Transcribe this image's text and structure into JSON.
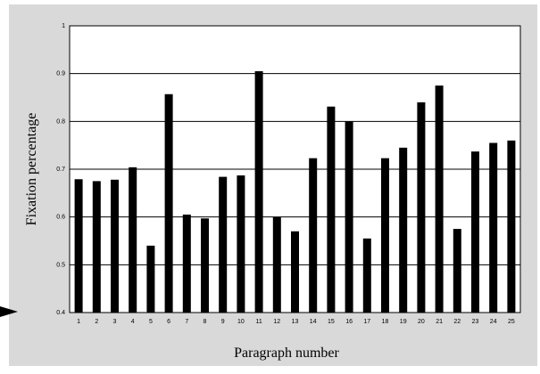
{
  "chart_data": {
    "type": "bar",
    "title": "",
    "xlabel": "Paragraph number",
    "ylabel": "Fixation percentage",
    "ylim": [
      0.4,
      1.0
    ],
    "yticks": [
      "0.4",
      "0.5",
      "0.6",
      "0.7",
      "0.8",
      "0.9",
      "1"
    ],
    "grid": true,
    "legend": "none",
    "categories": [
      "1",
      "2",
      "3",
      "4",
      "5",
      "6",
      "7",
      "8",
      "9",
      "10",
      "11",
      "12",
      "13",
      "14",
      "15",
      "16",
      "17",
      "18",
      "19",
      "20",
      "21",
      "22",
      "23",
      "24",
      "25"
    ],
    "values": [
      0.679,
      0.675,
      0.678,
      0.704,
      0.54,
      0.857,
      0.605,
      0.597,
      0.684,
      0.687,
      0.905,
      0.6,
      0.57,
      0.723,
      0.831,
      0.8,
      0.555,
      0.723,
      0.745,
      0.84,
      0.875,
      0.575,
      0.737,
      0.755,
      0.76
    ],
    "colors": {
      "background": "#d9d9d9",
      "plot_background": "#ffffff",
      "bar": "#000000",
      "grid": "#000000"
    }
  }
}
